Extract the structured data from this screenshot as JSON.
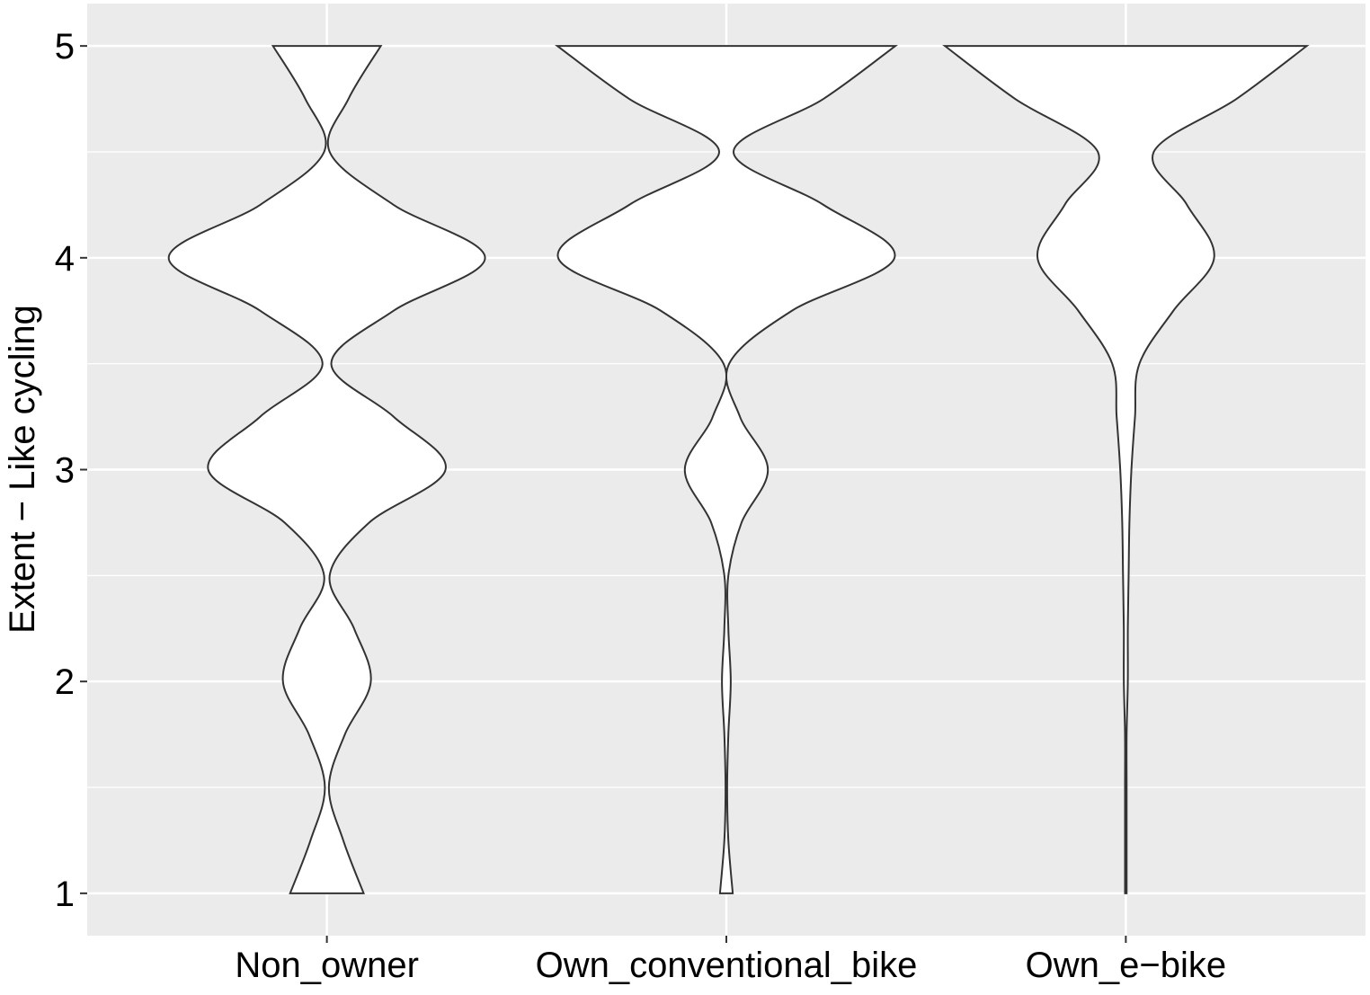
{
  "chart_data": {
    "type": "violin",
    "y_label": "Extent − Like cycling",
    "categories": [
      "Non_owner",
      "Own_conventional_bike",
      "Own_e−bike"
    ],
    "density_y": [
      1,
      1.25,
      1.5,
      1.75,
      2,
      2.25,
      2.5,
      2.75,
      3,
      3.25,
      3.5,
      3.75,
      4,
      4.25,
      4.5,
      4.75,
      5
    ],
    "series": [
      {
        "name": "Non_owner",
        "half_widths": [
          0.092,
          0.041,
          0.005,
          0.045,
          0.11,
          0.068,
          0.007,
          0.106,
          0.297,
          0.167,
          0.011,
          0.167,
          0.396,
          0.167,
          0.007,
          0.054,
          0.135
        ]
      },
      {
        "name": "Own_conventional_bike",
        "half_widths": [
          0.016,
          0.005,
          0.002,
          0.005,
          0.011,
          0.005,
          0.005,
          0.038,
          0.104,
          0.034,
          0.007,
          0.164,
          0.421,
          0.243,
          0.018,
          0.243,
          0.423
        ]
      },
      {
        "name": "Own_e−bike",
        "half_widths": [
          0.002,
          0.002,
          0.002,
          0.002,
          0.005,
          0.005,
          0.007,
          0.009,
          0.014,
          0.023,
          0.034,
          0.119,
          0.221,
          0.153,
          0.07,
          0.277,
          0.453
        ]
      }
    ],
    "fill": "#ffffff",
    "outline": "#333333",
    "ylim": [
      0.8,
      5.2
    ],
    "yticks": [
      1,
      2,
      3,
      4,
      5
    ],
    "minor_gridlines": [
      1.5,
      2.5,
      3.5,
      4.5
    ],
    "xlim": [
      0.4,
      3.6
    ],
    "grid": true
  }
}
